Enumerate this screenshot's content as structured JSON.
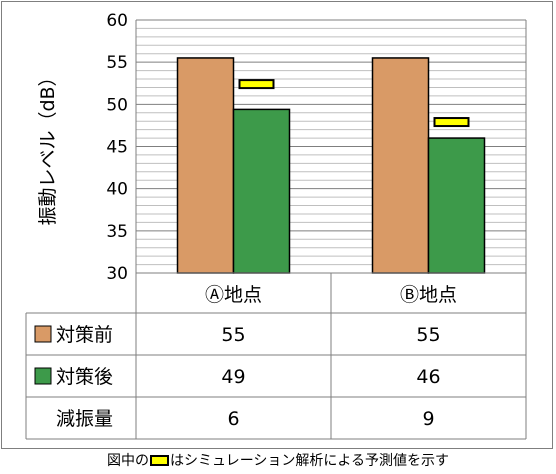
{
  "chart_data": {
    "type": "bar",
    "categories": [
      "Ⓐ地点",
      "Ⓑ地点"
    ],
    "series": [
      {
        "name": "対策前",
        "values": [
          55.5,
          55.5
        ],
        "color": "#d99a66"
      },
      {
        "name": "対策後",
        "values": [
          49.4,
          46.0
        ],
        "color": "#3d9a4a"
      }
    ],
    "predicted": {
      "values": [
        52.4,
        47.9
      ],
      "color": "#ffff00"
    },
    "ylabel": "振動レベル（dB）",
    "ylim": [
      30,
      60
    ],
    "yticks": [
      "30",
      "35",
      "40",
      "45",
      "50",
      "55",
      "60"
    ],
    "grid": true,
    "table": {
      "rows": [
        {
          "label": "対策前",
          "swatch": "#d99a66",
          "cells": [
            "55",
            "55"
          ]
        },
        {
          "label": "対策後",
          "swatch": "#3d9a4a",
          "cells": [
            "49",
            "46"
          ]
        },
        {
          "label": "減振量",
          "swatch": "",
          "cells": [
            "6",
            "9"
          ]
        }
      ]
    }
  },
  "note": {
    "before": "図中の",
    "after": "はシミュレーション解析による予測値を示す"
  }
}
